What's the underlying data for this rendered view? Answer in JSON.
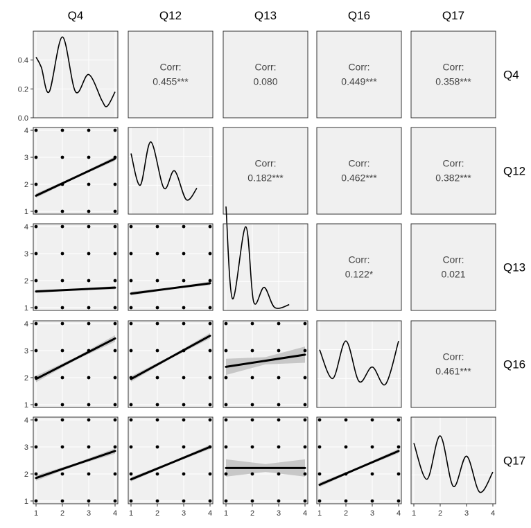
{
  "chart_data": {
    "type": "scatter-matrix",
    "variables": [
      "Q4",
      "Q12",
      "Q13",
      "Q16",
      "Q17"
    ],
    "density_axis": {
      "range": [
        0,
        0.6
      ],
      "ticks": [
        "0.0",
        "0.2",
        "0.4"
      ]
    },
    "scatter_axis": {
      "range": [
        1,
        4
      ],
      "ticks": [
        "1",
        "2",
        "3",
        "4"
      ]
    },
    "point_grid_values": [
      1,
      2,
      3,
      4
    ],
    "correlations": [
      {
        "row": "Q4",
        "col": "Q12",
        "label": "Corr:",
        "value": "0.455***"
      },
      {
        "row": "Q4",
        "col": "Q13",
        "label": "Corr:",
        "value": "0.080"
      },
      {
        "row": "Q4",
        "col": "Q16",
        "label": "Corr:",
        "value": "0.449***"
      },
      {
        "row": "Q4",
        "col": "Q17",
        "label": "Corr:",
        "value": "0.358***"
      },
      {
        "row": "Q12",
        "col": "Q13",
        "label": "Corr:",
        "value": "0.182***"
      },
      {
        "row": "Q12",
        "col": "Q16",
        "label": "Corr:",
        "value": "0.462***"
      },
      {
        "row": "Q12",
        "col": "Q17",
        "label": "Corr:",
        "value": "0.382***"
      },
      {
        "row": "Q13",
        "col": "Q16",
        "label": "Corr:",
        "value": "0.122*"
      },
      {
        "row": "Q13",
        "col": "Q17",
        "label": "Corr:",
        "value": "0.021"
      },
      {
        "row": "Q16",
        "col": "Q17",
        "label": "Corr:",
        "value": "0.461***"
      }
    ],
    "densities": {
      "Q4": [
        [
          1.0,
          0.42
        ],
        [
          1.2,
          0.35
        ],
        [
          1.5,
          0.18
        ],
        [
          2.0,
          0.56
        ],
        [
          2.5,
          0.18
        ],
        [
          3.0,
          0.3
        ],
        [
          3.5,
          0.12
        ],
        [
          3.7,
          0.08
        ],
        [
          4.0,
          0.18
        ]
      ],
      "Q12": [
        [
          1.0,
          0.42
        ],
        [
          1.35,
          0.2
        ],
        [
          1.75,
          0.5
        ],
        [
          2.25,
          0.18
        ],
        [
          2.65,
          0.3
        ],
        [
          3.1,
          0.1
        ],
        [
          3.5,
          0.18
        ]
      ],
      "Q13": [
        [
          1.0,
          0.72
        ],
        [
          1.25,
          0.08
        ],
        [
          1.75,
          0.58
        ],
        [
          2.05,
          0.06
        ],
        [
          2.45,
          0.16
        ],
        [
          2.85,
          0.02
        ],
        [
          3.4,
          0.04
        ]
      ],
      "Q16": [
        [
          1.0,
          0.4
        ],
        [
          1.5,
          0.2
        ],
        [
          2.0,
          0.46
        ],
        [
          2.5,
          0.18
        ],
        [
          3.0,
          0.28
        ],
        [
          3.5,
          0.16
        ],
        [
          4.0,
          0.46
        ]
      ],
      "Q17": [
        [
          1.0,
          0.42
        ],
        [
          1.5,
          0.17
        ],
        [
          2.0,
          0.47
        ],
        [
          2.5,
          0.12
        ],
        [
          3.0,
          0.33
        ],
        [
          3.5,
          0.08
        ],
        [
          4.0,
          0.22
        ]
      ]
    },
    "regressions": [
      {
        "row": "Q12",
        "col": "Q4",
        "y_at_1": 1.58,
        "y_at_4": 2.95,
        "ci": 0.08
      },
      {
        "row": "Q13",
        "col": "Q4",
        "y_at_1": 1.6,
        "y_at_4": 1.74,
        "ci": 0.06
      },
      {
        "row": "Q13",
        "col": "Q12",
        "y_at_1": 1.52,
        "y_at_4": 1.9,
        "ci": 0.07
      },
      {
        "row": "Q16",
        "col": "Q4",
        "y_at_1": 1.95,
        "y_at_4": 3.45,
        "ci": 0.12
      },
      {
        "row": "Q16",
        "col": "Q12",
        "y_at_1": 1.95,
        "y_at_4": 3.55,
        "ci": 0.1
      },
      {
        "row": "Q16",
        "col": "Q13",
        "y_at_1": 2.4,
        "y_at_4": 2.85,
        "ci": 0.3
      },
      {
        "row": "Q17",
        "col": "Q4",
        "y_at_1": 1.85,
        "y_at_4": 2.85,
        "ci": 0.1
      },
      {
        "row": "Q17",
        "col": "Q12",
        "y_at_1": 1.8,
        "y_at_4": 3.0,
        "ci": 0.08
      },
      {
        "row": "Q17",
        "col": "Q13",
        "y_at_1": 2.22,
        "y_at_4": 2.22,
        "ci": 0.32
      },
      {
        "row": "Q17",
        "col": "Q16",
        "y_at_1": 1.6,
        "y_at_4": 2.85,
        "ci": 0.08
      }
    ],
    "colors": {
      "panel_bg": "#f0f0f0",
      "grid": "#ffffff",
      "ink": "#000000",
      "ci": "#bdbdbd",
      "text": "#444444"
    }
  }
}
